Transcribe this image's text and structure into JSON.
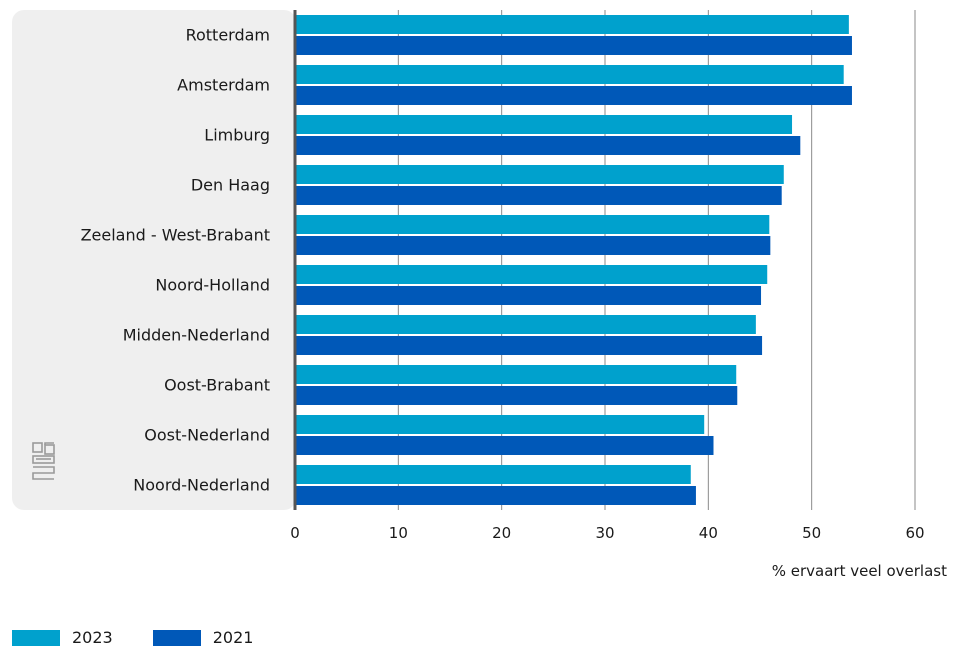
{
  "chart_data": {
    "type": "bar",
    "orientation": "horizontal",
    "categories": [
      "Rotterdam",
      "Amsterdam",
      "Limburg",
      "Den Haag",
      "Zeeland - West-Brabant",
      "Noord-Holland",
      "Midden-Nederland",
      "Oost-Brabant",
      "Oost-Nederland",
      "Noord-Nederland"
    ],
    "series": [
      {
        "name": "2023",
        "color": "#00a1cd",
        "values": [
          53.6,
          53.1,
          48.1,
          47.3,
          45.9,
          45.7,
          44.6,
          42.7,
          39.6,
          38.3
        ]
      },
      {
        "name": "2021",
        "color": "#0058b8",
        "values": [
          53.9,
          53.9,
          48.9,
          47.1,
          46.0,
          45.1,
          45.2,
          42.8,
          40.5,
          38.8
        ]
      }
    ],
    "xlabel": "% ervaart veel overlast",
    "xlim": [
      0,
      60
    ],
    "xticks": [
      "0",
      "10",
      "20",
      "30",
      "40",
      "50",
      "60"
    ],
    "grid": true,
    "legend_position": "bottom-left"
  },
  "logo": {
    "icon": "cbs-logo-icon",
    "text": "cbs"
  }
}
